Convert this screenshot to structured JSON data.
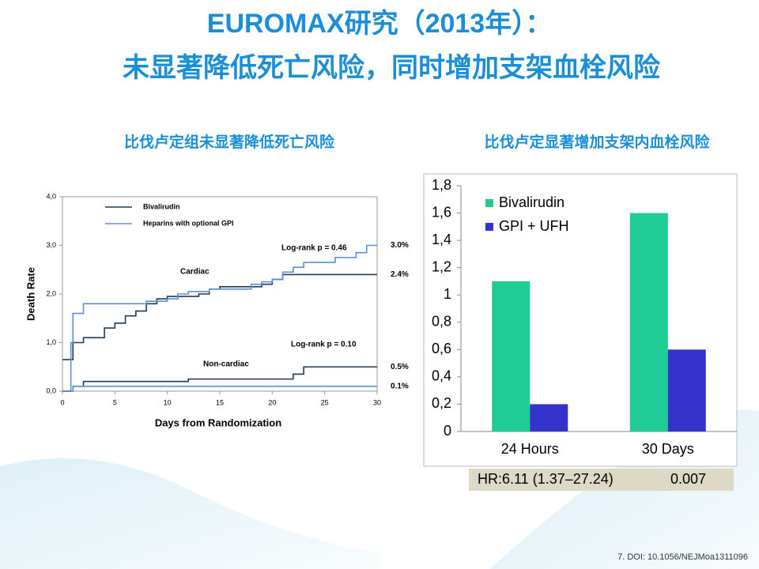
{
  "title": [
    "EUROMAX研究（2013年）：",
    "未显著降低死亡风险，同时增加支架血栓风险"
  ],
  "footer": "7. DOI: 10.1056/NEJMoa1311096",
  "chart_data": [
    {
      "type": "step",
      "subtitle": "比伐卢定组未显著降低死亡风险",
      "x_label": "Days from Randomization",
      "y_label": "Death Rate",
      "xlim": [
        0,
        30
      ],
      "ylim": [
        0,
        4
      ],
      "xticks": [
        0,
        5,
        10,
        15,
        20,
        25,
        30
      ],
      "yticks": [
        {
          "value": 0,
          "label": "0,0"
        },
        {
          "value": 1,
          "label": "1,0"
        },
        {
          "value": 2,
          "label": "2,0"
        },
        {
          "value": 3,
          "label": "3,0"
        },
        {
          "value": 4,
          "label": "4,0"
        }
      ],
      "annotations": [
        "Cardiac",
        "Non-cardiac",
        "Log-rank p = 0.46",
        "Log-rank p = 0.10"
      ],
      "legend_count": 2,
      "series": [
        {
          "name": "Bivalirudin",
          "color": "#1f3a52",
          "end_label": "2.4%",
          "x": [
            0,
            1,
            2,
            4,
            5,
            6,
            7,
            8,
            9,
            10,
            13,
            14,
            15,
            19,
            20,
            21,
            30
          ],
          "values": [
            0.65,
            1.0,
            1.1,
            1.3,
            1.4,
            1.55,
            1.65,
            1.8,
            1.9,
            1.95,
            2.0,
            2.1,
            2.15,
            2.2,
            2.3,
            2.4,
            2.4
          ]
        },
        {
          "name": "Heparins with optional GPI",
          "color": "#5b8fd8",
          "end_label": "3.0%",
          "x": [
            0,
            0.8,
            1,
            2,
            8,
            10,
            11,
            12,
            14,
            18,
            19,
            20,
            21,
            22,
            23,
            26,
            28,
            29,
            30
          ],
          "values": [
            0,
            1.0,
            1.6,
            1.8,
            1.85,
            1.9,
            2.0,
            2.05,
            2.1,
            2.2,
            2.25,
            2.3,
            2.45,
            2.55,
            2.65,
            2.75,
            2.85,
            3.0,
            3.0
          ]
        },
        {
          "name": "Bivalirudin",
          "color": "#1f3a52",
          "end_label": "0.5%",
          "x": [
            0,
            1,
            2,
            12,
            22,
            23,
            30
          ],
          "values": [
            0,
            0.1,
            0.2,
            0.25,
            0.35,
            0.5,
            0.5
          ]
        },
        {
          "name": "Heparins with optional GPI",
          "color": "#5b8fd8",
          "end_label": "0.1%",
          "x": [
            0,
            1,
            30
          ],
          "values": [
            0,
            0.1,
            0.1
          ]
        }
      ]
    },
    {
      "type": "bar",
      "subtitle": "比伐卢定显著增加支架内血栓风险",
      "categories": [
        "24 Hours",
        "30 Days"
      ],
      "ylim": [
        0,
        1.8
      ],
      "yticks": [
        0,
        {
          "value": 0.2,
          "label": "0,2"
        },
        {
          "value": 0.4,
          "label": "0,4"
        },
        {
          "value": 0.6,
          "label": "0,6"
        },
        {
          "value": 0.8,
          "label": "0,8"
        },
        1,
        {
          "value": 1.2,
          "label": "1,2"
        },
        {
          "value": 1.4,
          "label": "1,4"
        },
        {
          "value": 1.6,
          "label": "1,6"
        },
        {
          "value": 1.8,
          "label": "1,8"
        }
      ],
      "series": [
        {
          "name": "Bivalirudin",
          "color": "#1fcc96",
          "values": [
            1.1,
            1.6
          ]
        },
        {
          "name": "GPI + UFH",
          "color": "#3333cc",
          "values": [
            0.2,
            0.6
          ]
        }
      ],
      "table": [
        "HR:6.11 (1.37–27.24)",
        "0.007"
      ]
    }
  ]
}
